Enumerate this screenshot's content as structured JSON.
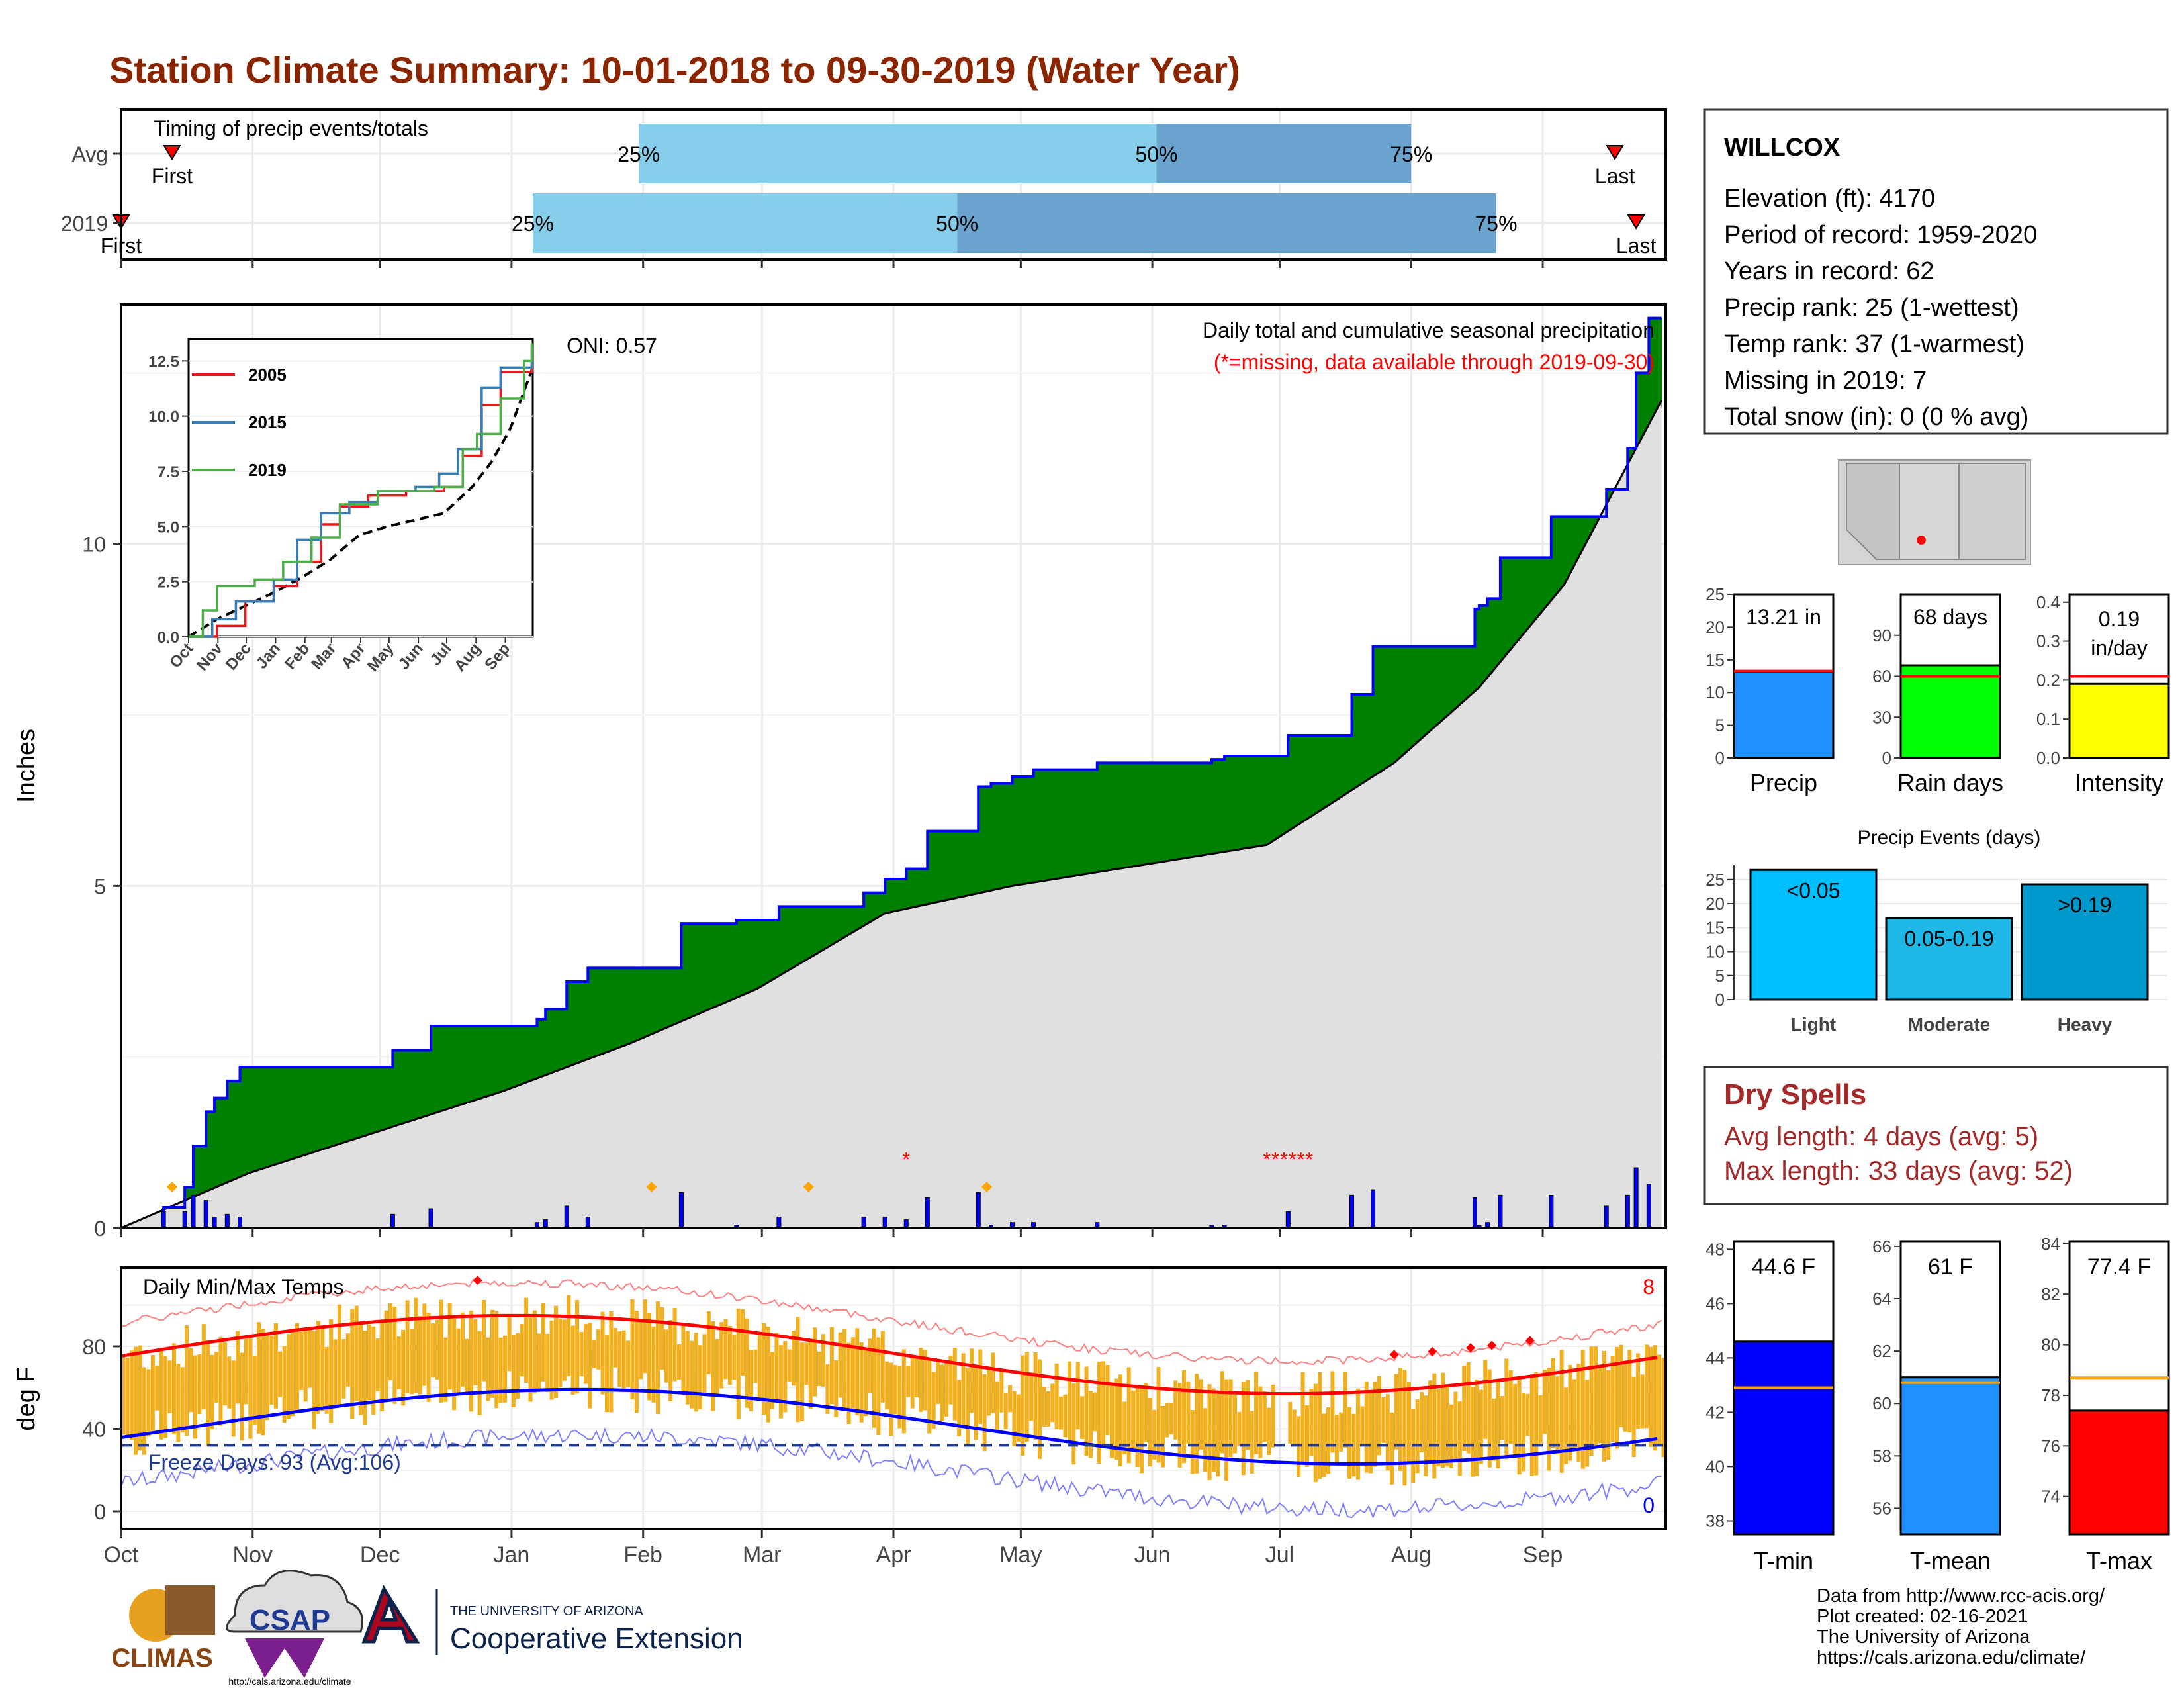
{
  "title": "Station Climate Summary: 10-01-2018 to 09-30-2019 (Water Year)",
  "colors": {
    "title": "#8B2500",
    "dry_spells": "#A52A2A",
    "bar_light": "#87CEEB",
    "bar_dark": "#6BA3CF",
    "green": "#008000",
    "brown": "#8B5A00",
    "gray": "#E0E0E0",
    "blue": "#0000FF",
    "red": "#FF0000",
    "orange": "#F0B020",
    "navy": "#1F3A93",
    "yellow": "#FFFF00",
    "lime": "#00FF00",
    "dodger": "#1E90FF",
    "cyan": "#00BFFF",
    "light_blue": "#1FB8E6",
    "steel": "#0099CC"
  },
  "months": [
    "Oct",
    "Nov",
    "Dec",
    "Jan",
    "Feb",
    "Mar",
    "Apr",
    "May",
    "Jun",
    "Jul",
    "Aug",
    "Sep"
  ],
  "timing": {
    "label": "Timing of precip events/totals",
    "rows": [
      {
        "name": "Avg",
        "first": "First",
        "last": "Last",
        "pct_labels": [
          "25%",
          "50%",
          "75%"
        ],
        "first_day": 12,
        "p25_day": 122,
        "p50_day": 244,
        "p75_day": 304,
        "last_day": 352
      },
      {
        "name": "2019",
        "first": "First",
        "last": "Last",
        "pct_labels": [
          "25%",
          "50%",
          "75%"
        ],
        "first_day": 0,
        "p25_day": 97,
        "p50_day": 197,
        "p75_day": 324,
        "last_day": 357
      }
    ]
  },
  "station": {
    "name": "WILLCOX",
    "lines": [
      "Elevation (ft): 4170",
      "Period of record: 1959-2020",
      "Years in record: 62",
      "Precip rank: 25 (1-wettest)",
      "Temp rank: 37 (1-warmest)",
      "Missing in 2019: 7",
      "Total snow (in): 0 (0 % avg)"
    ]
  },
  "precip_panel": {
    "ylabel": "Inches",
    "oni": "ONI: 0.57",
    "note": "Daily total and cumulative seasonal precipitation",
    "missing_note": "(*=missing, data available through 2019-09-30)",
    "yticks": [
      0,
      5,
      10
    ],
    "ylim": [
      0,
      13.5
    ]
  },
  "inset": {
    "legend": [
      "2005",
      "2015",
      "2019"
    ],
    "yticks": [
      "0.0",
      "2.5",
      "5.0",
      "7.5",
      "10.0",
      "12.5"
    ],
    "xticks": [
      "Oct",
      "Nov",
      "Dec",
      "Jan",
      "Feb",
      "Mar",
      "Apr",
      "May",
      "Jun",
      "Jul",
      "Aug",
      "Sep"
    ]
  },
  "temp_panel": {
    "ylabel": "deg F",
    "label": "Daily Min/Max Temps",
    "freeze": "Freeze Days: 93 (Avg:106)",
    "count_hi": "8",
    "count_lo": "0",
    "yticks": [
      "0",
      "40",
      "80"
    ]
  },
  "summary_bars": [
    {
      "name": "Precip",
      "label": "13.21 in",
      "value": 13.21,
      "avg": 13.3,
      "ymax": 25,
      "ticks": [
        "0",
        "5",
        "10",
        "15",
        "20",
        "25"
      ]
    },
    {
      "name": "Rain days",
      "label": "68 days",
      "value": 68,
      "avg": 60,
      "ymax": 120,
      "ticks": [
        "0",
        "30",
        "60",
        "90"
      ]
    },
    {
      "name": "Intensity",
      "label1": "0.19",
      "label2": "in/day",
      "value": 0.19,
      "avg": 0.21,
      "ymax": 0.42,
      "ticks": [
        "0.0",
        "0.1",
        "0.2",
        "0.3",
        "0.4"
      ]
    }
  ],
  "events": {
    "title": "Precip Events (days)",
    "categories": [
      "Light",
      "Moderate",
      "Heavy"
    ],
    "labels": [
      "<0.05",
      "0.05-0.19",
      ">0.19"
    ],
    "values": [
      27,
      17,
      24
    ],
    "ticks": [
      "0",
      "5",
      "10",
      "15",
      "20",
      "25"
    ]
  },
  "dry_spells": {
    "title": "Dry Spells",
    "avg": "Avg length: 4 days (avg: 5)",
    "max": "Max length: 33 days (avg: 52)"
  },
  "temp_bars": [
    {
      "name": "T-min",
      "label": "44.6 F",
      "value": 44.6,
      "avg": 42.9,
      "ymin": 37.5,
      "ymax": 48.3,
      "ticks": [
        "38",
        "40",
        "42",
        "44",
        "46",
        "48"
      ]
    },
    {
      "name": "T-mean",
      "label": "61 F",
      "value": 61.0,
      "avg": 60.8,
      "ymin": 55.0,
      "ymax": 66.2,
      "ticks": [
        "56",
        "58",
        "60",
        "62",
        "64",
        "66"
      ]
    },
    {
      "name": "T-max",
      "label": "77.4 F",
      "value": 77.4,
      "avg": 78.7,
      "ymin": 72.5,
      "ymax": 84.1,
      "ticks": [
        "74",
        "76",
        "78",
        "80",
        "82",
        "84"
      ]
    }
  ],
  "credits": [
    "Data from http://www.rcc-acis.org/",
    "Plot created: 02-16-2021",
    "The University of Arizona",
    "https://cals.arizona.edu/climate/"
  ],
  "logos": {
    "climas": "CLIMAS",
    "csap": "CSAP",
    "csap_url": "http://cals.arizona.edu/climate",
    "ua_small": "THE UNIVERSITY OF ARIZONA",
    "ua_big": "Cooperative Extension"
  },
  "chart_data": {
    "type": "area",
    "title": "Daily total and cumulative seasonal precipitation",
    "ylabel": "Inches",
    "ylim": [
      0,
      13.5
    ],
    "series": [
      {
        "name": "2019 cumulative",
        "x_day": [
          0,
          10,
          15,
          17,
          20,
          22,
          25,
          28,
          57,
          64,
          73,
          80,
          98,
          100,
          105,
          110,
          117,
          125,
          132,
          145,
          155,
          175,
          180,
          185,
          190,
          202,
          205,
          210,
          215,
          230,
          257,
          260,
          275,
          290,
          295,
          305,
          319,
          320,
          322,
          325,
          337,
          350,
          355,
          357,
          360,
          363
        ],
        "values": [
          0,
          0.3,
          0.6,
          1.2,
          1.7,
          1.9,
          2.15,
          2.35,
          2.35,
          2.6,
          2.95,
          2.95,
          3.05,
          3.2,
          3.6,
          3.8,
          3.8,
          3.8,
          4.45,
          4.5,
          4.7,
          4.9,
          5.1,
          5.25,
          5.8,
          6.45,
          6.5,
          6.6,
          6.7,
          6.8,
          6.85,
          6.9,
          7.2,
          7.8,
          8.5,
          8.5,
          9.05,
          9.1,
          9.2,
          9.8,
          10.4,
          10.8,
          11.4,
          12.5,
          13.3,
          13.3
        ]
      },
      {
        "name": "average cumulative",
        "x_day": [
          0,
          30,
          60,
          90,
          120,
          150,
          180,
          210,
          240,
          270,
          280,
          300,
          320,
          340,
          363
        ],
        "values": [
          0,
          0.8,
          1.4,
          2.0,
          2.7,
          3.5,
          4.6,
          5.0,
          5.3,
          5.6,
          6.0,
          6.8,
          7.9,
          9.4,
          12.1
        ]
      }
    ]
  }
}
